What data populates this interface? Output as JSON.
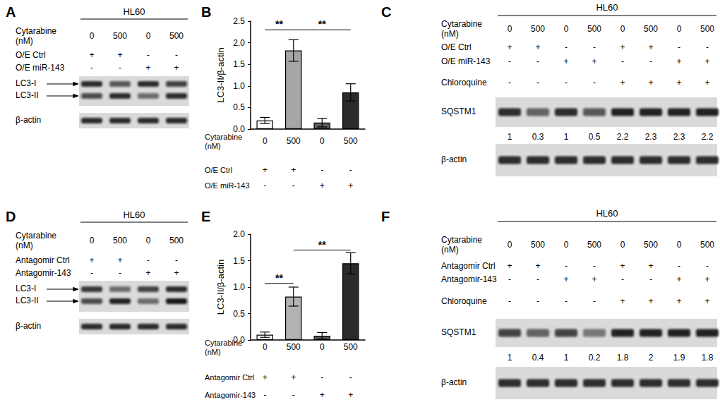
{
  "chart_data": [
    {
      "type": "bar",
      "label": "B",
      "y_label": "LC3-II/β-actin",
      "values": [
        0.2,
        1.82,
        0.15,
        0.85
      ],
      "errors": [
        0.07,
        0.25,
        0.1,
        0.2
      ],
      "colors": [
        "#ffffff",
        "#a6a6a6",
        "#5e5e5e",
        "#2b2b2b"
      ],
      "ylim": [
        0,
        2.5
      ],
      "yticks": [
        {
          "value": 0,
          "label": "0.0"
        },
        0.5,
        {
          "value": 1,
          "label": "1.0"
        },
        1.5,
        {
          "value": 2,
          "label": "2.0"
        },
        2.5
      ],
      "grid": false,
      "tick_labels": "y",
      "annotations": [
        {
          "text": "**",
          "from": 0,
          "to": 1,
          "y": 2.3
        },
        {
          "text": "**",
          "from": 1,
          "to": 3,
          "y": 2.3
        }
      ],
      "conditions": [
        {
          "label": "Cytarabine\n(nM)",
          "values": [
            "0",
            "500",
            "0",
            "500"
          ]
        },
        {
          "label": "O/E Ctrl",
          "values": [
            "+",
            "+",
            "-",
            "-"
          ]
        },
        {
          "label": "O/E miR-143",
          "values": [
            "-",
            "-",
            "+",
            "+"
          ]
        }
      ]
    },
    {
      "type": "bar",
      "label": "E",
      "y_label": "LC3-II/β-actin",
      "values": [
        0.1,
        0.82,
        0.08,
        1.45
      ],
      "errors": [
        0.05,
        0.18,
        0.06,
        0.2
      ],
      "colors": [
        "#ffffff",
        "#b3b3b3",
        "#5e5e5e",
        "#2b2b2b"
      ],
      "ylim": [
        0,
        2
      ],
      "yticks": [
        {
          "value": 0,
          "label": "0.0"
        },
        0.5,
        {
          "value": 1,
          "label": "1.0"
        },
        1.5,
        {
          "value": 2,
          "label": "2.0"
        }
      ],
      "grid": false,
      "tick_labels": "y",
      "annotations": [
        {
          "text": "**",
          "from": 0,
          "to": 1,
          "y": 1.07
        },
        {
          "text": "**",
          "from": 1,
          "to": 3,
          "y": 1.7
        }
      ],
      "conditions": [
        {
          "label": "Cytarabine\n(nM)",
          "values": [
            "0",
            "500",
            "0",
            "500"
          ]
        },
        {
          "label": "Antagomir Ctrl",
          "values": [
            "+",
            "+",
            "-",
            "-"
          ]
        },
        {
          "label": "Antagomir-143",
          "values": [
            "-",
            "-",
            "+",
            "+"
          ]
        }
      ]
    }
  ],
  "blot_panels": [
    {
      "label": "A",
      "header": "HL60",
      "conditions": [
        {
          "label": "Cytarabine\n(nM)",
          "values": [
            "0",
            "500",
            "0",
            "500"
          ]
        },
        {
          "label": "O/E Ctrl",
          "values": [
            "+",
            "+",
            "-",
            "-"
          ]
        },
        {
          "label": "O/E miR-143",
          "values": [
            "-",
            "-",
            "+",
            "+"
          ]
        }
      ],
      "blots": [
        {
          "bands": [
            {
              "label": "LC3-I",
              "intensity": [
                0.85,
                0.65,
                0.85,
                0.75
              ]
            },
            {
              "label": "LC3-II",
              "intensity": [
                0.7,
                0.85,
                0.55,
                0.85
              ]
            }
          ]
        },
        {
          "bands": [
            {
              "label": "β-actin",
              "intensity": [
                0.85,
                0.85,
                0.85,
                0.85
              ]
            }
          ]
        }
      ]
    },
    {
      "label": "C",
      "header": "HL60",
      "conditions": [
        {
          "label": "Cytarabine\n(nM)",
          "values": [
            "0",
            "500",
            "0",
            "500",
            "0",
            "500",
            "0",
            "500"
          ]
        },
        {
          "label": "O/E Ctrl",
          "values": [
            "+",
            "+",
            "-",
            "-",
            "+",
            "+",
            "-",
            "-"
          ]
        },
        {
          "label": "O/E miR-143",
          "values": [
            "-",
            "-",
            "+",
            "+",
            "-",
            "-",
            "+",
            "+"
          ]
        },
        {
          "label": "Chloroquine",
          "values": [
            "-",
            "-",
            "-",
            "-",
            "+",
            "+",
            "+",
            "+"
          ]
        }
      ],
      "blots": [
        {
          "bands": [
            {
              "label": "SQSTM1",
              "intensity": [
                0.85,
                0.6,
                0.85,
                0.65,
                0.9,
                0.9,
                0.9,
                0.9
              ]
            }
          ],
          "quantification": [
            1,
            0.3,
            1,
            0.5,
            2.2,
            2.3,
            2.3,
            2.2
          ]
        },
        {
          "bands": [
            {
              "label": "β-actin",
              "intensity": [
                0.85,
                0.85,
                0.85,
                0.85,
                0.85,
                0.85,
                0.85,
                0.85
              ]
            }
          ]
        }
      ]
    },
    {
      "label": "D",
      "header": "HL60",
      "conditions": [
        {
          "label": "Cytarabine\n(nM)",
          "values": [
            "0",
            "500",
            "0",
            "500"
          ]
        },
        {
          "label": "Antagomir Ctrl",
          "values": [
            "+",
            "+",
            "-",
            "-"
          ]
        },
        {
          "label": "Antagomir-143",
          "values": [
            "-",
            "-",
            "+",
            "+"
          ]
        }
      ],
      "blots": [
        {
          "bands": [
            {
              "label": "LC3-I",
              "intensity": [
                0.8,
                0.55,
                0.75,
                0.85
              ]
            },
            {
              "label": "LC3-II",
              "intensity": [
                0.7,
                0.9,
                0.55,
                0.95
              ]
            }
          ]
        },
        {
          "bands": [
            {
              "label": "β-actin",
              "intensity": [
                0.85,
                0.85,
                0.85,
                0.85
              ]
            }
          ]
        }
      ]
    },
    {
      "label": "F",
      "header": "HL60",
      "conditions": [
        {
          "label": "Cytarabine\n(nM)",
          "values": [
            "0",
            "500",
            "0",
            "500",
            "0",
            "500",
            "0",
            "500"
          ]
        },
        {
          "label": "Antagomir Ctrl",
          "values": [
            "+",
            "+",
            "-",
            "-",
            "+",
            "+",
            "-",
            "-"
          ]
        },
        {
          "label": "Antagomir-143",
          "values": [
            "-",
            "-",
            "+",
            "+",
            "-",
            "-",
            "+",
            "+"
          ]
        },
        {
          "label": "Chloroquine",
          "values": [
            "-",
            "-",
            "-",
            "-",
            "+",
            "+",
            "+",
            "+"
          ]
        }
      ],
      "blots": [
        {
          "bands": [
            {
              "label": "SQSTM1",
              "intensity": [
                0.75,
                0.6,
                0.75,
                0.5,
                0.9,
                0.9,
                0.9,
                0.9
              ]
            }
          ],
          "quantification": [
            1,
            0.4,
            1,
            0.2,
            1.8,
            2,
            1.9,
            1.8
          ]
        },
        {
          "bands": [
            {
              "label": "β-actin",
              "intensity": [
                0.85,
                0.85,
                0.85,
                0.85,
                0.85,
                0.85,
                0.85,
                0.85
              ]
            }
          ]
        }
      ]
    }
  ]
}
